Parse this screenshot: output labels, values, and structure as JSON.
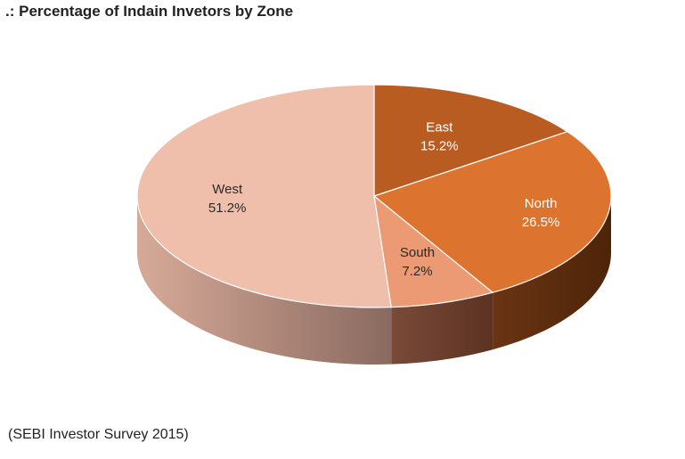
{
  "chart_data": {
    "type": "pie",
    "title": ".: Percentage of Indain Invetors by Zone",
    "categories": [
      "East",
      "North",
      "South",
      "West"
    ],
    "values": [
      15.2,
      26.5,
      7.2,
      51.2
    ],
    "value_labels": [
      "15.2%",
      "26.5%",
      "7.2%",
      "51.2%"
    ],
    "unit": "%",
    "style": "3d",
    "legend": "none",
    "colors": {
      "East": "#b85c22",
      "North": "#dc7430",
      "South": "#eb9a74",
      "West": "#efbfab"
    },
    "side_colors": {
      "East": "#6e3412",
      "North": "#6c3414",
      "South": "#6e4030",
      "West": "#b89080"
    }
  },
  "source": "(SEBI Investor Survey 2015)"
}
